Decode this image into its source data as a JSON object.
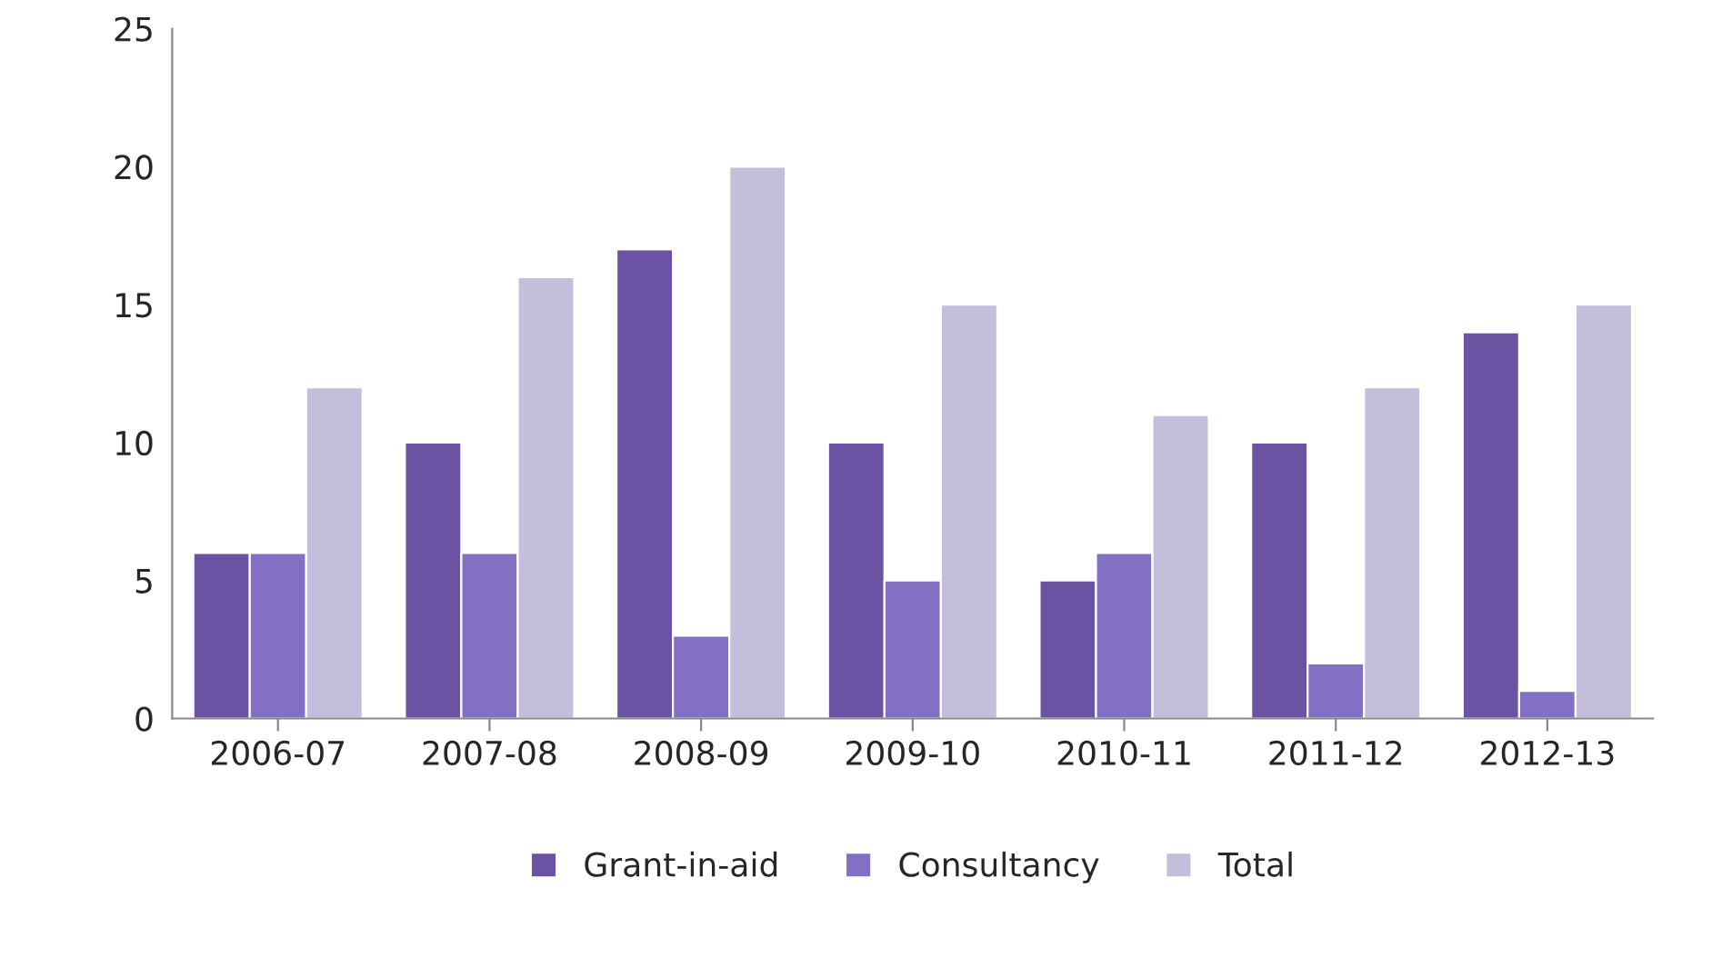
{
  "chart_data": {
    "type": "bar",
    "categories": [
      "2006-07",
      "2007-08",
      "2008-09",
      "2009-10",
      "2010-11",
      "2011-12",
      "2012-13"
    ],
    "series": [
      {
        "name": "Grant-in-aid",
        "color": "#6b52a3",
        "values": [
          6,
          10,
          17,
          10,
          5,
          10,
          14
        ]
      },
      {
        "name": "Consultancy",
        "color": "#8370c4",
        "values": [
          6,
          6,
          3,
          5,
          6,
          2,
          1
        ]
      },
      {
        "name": "Total",
        "color": "#c4bedc",
        "values": [
          12,
          16,
          20,
          15,
          11,
          12,
          15
        ]
      }
    ],
    "ylim": [
      0,
      25
    ],
    "yticks": [
      0,
      5,
      10,
      15,
      20,
      25
    ],
    "grid": false,
    "legend": "bottom"
  }
}
